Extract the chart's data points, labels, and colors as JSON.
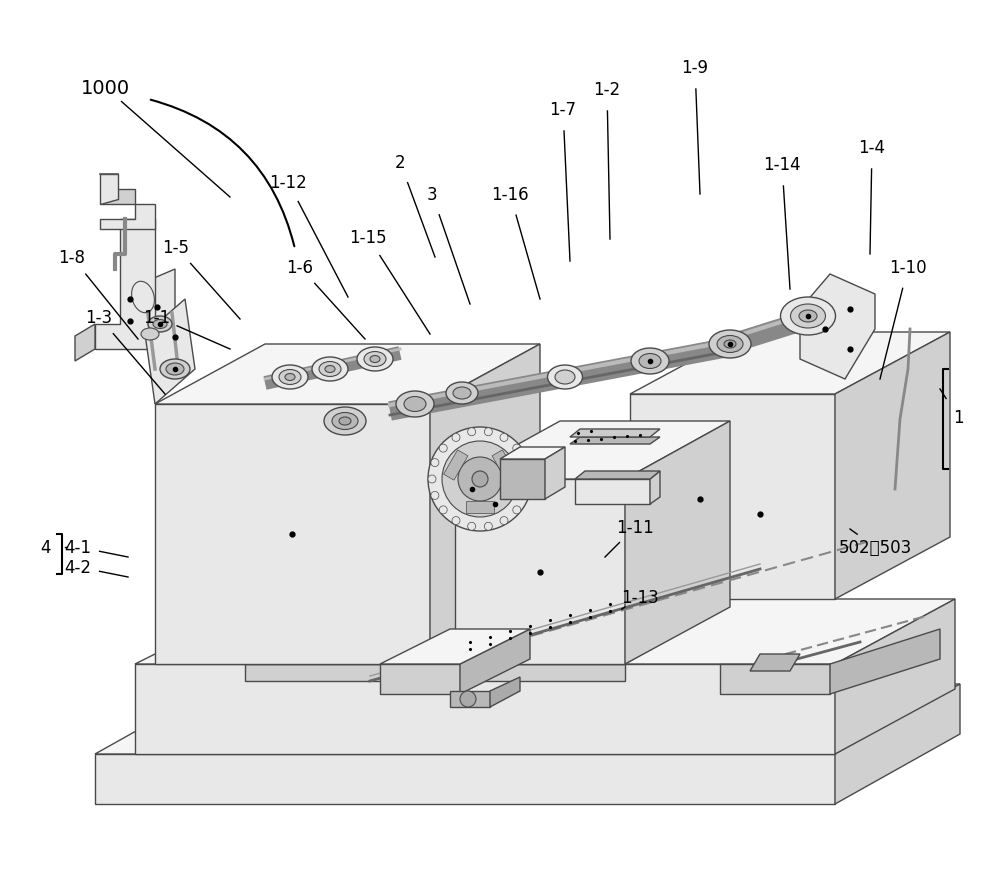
{
  "bg": "#ffffff",
  "ec": "#4a4a4a",
  "fc_light": "#f5f5f5",
  "fc_mid": "#e8e8e8",
  "fc_dark": "#d0d0d0",
  "fc_darker": "#b8b8b8",
  "lw": 1.0,
  "labels": [
    [
      "1000",
      105,
      88,
      230,
      198
    ],
    [
      "1-12",
      288,
      183,
      348,
      298
    ],
    [
      "2",
      400,
      163,
      435,
      258
    ],
    [
      "3",
      432,
      195,
      470,
      305
    ],
    [
      "1-8",
      72,
      258,
      138,
      340
    ],
    [
      "1-5",
      176,
      248,
      240,
      320
    ],
    [
      "1-6",
      300,
      268,
      365,
      340
    ],
    [
      "1-15",
      368,
      238,
      430,
      335
    ],
    [
      "1-7",
      563,
      110,
      570,
      262
    ],
    [
      "1-2",
      607,
      90,
      610,
      240
    ],
    [
      "1-9",
      695,
      68,
      700,
      195
    ],
    [
      "1-16",
      510,
      195,
      540,
      300
    ],
    [
      "1-14",
      782,
      165,
      790,
      290
    ],
    [
      "1-4",
      872,
      148,
      870,
      255
    ],
    [
      "1-1",
      157,
      318,
      230,
      350
    ],
    [
      "1-3",
      99,
      318,
      165,
      395
    ],
    [
      "1-10",
      908,
      268,
      880,
      380
    ],
    [
      "1",
      958,
      418,
      940,
      390
    ],
    [
      "4-1",
      78,
      548,
      128,
      558
    ],
    [
      "4-2",
      78,
      568,
      128,
      578
    ],
    [
      "4",
      45,
      548,
      65,
      548
    ],
    [
      "1-11",
      635,
      528,
      605,
      558
    ],
    [
      "502、503",
      875,
      548,
      850,
      530
    ],
    [
      "1-13",
      640,
      598,
      625,
      608
    ]
  ]
}
